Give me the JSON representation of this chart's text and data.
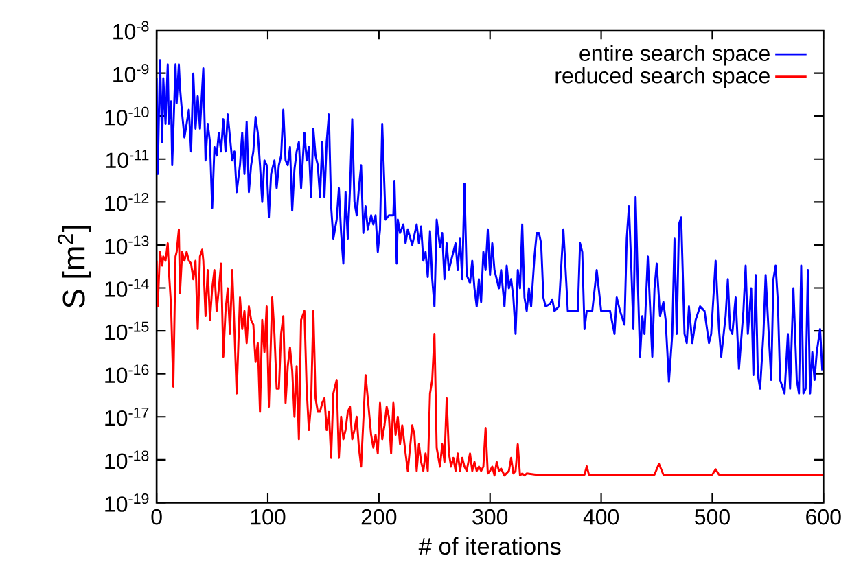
{
  "chart_data": {
    "type": "line",
    "xlabel": "# of iterations",
    "ylabel": "S [m$^{2}$]",
    "xlim": [
      0,
      600
    ],
    "ylim": [
      1e-19,
      1e-08
    ],
    "xticks": [
      0,
      100,
      200,
      300,
      400,
      500,
      600
    ],
    "yticks": [
      {
        "value": 1e-19,
        "label": "10$^{-19}$"
      },
      {
        "value": 1e-18,
        "label": "10$^{-18}$"
      },
      {
        "value": 1e-17,
        "label": "10$^{-17}$"
      },
      {
        "value": 1e-16,
        "label": "10$^{-16}$"
      },
      {
        "value": 1e-15,
        "label": "10$^{-15}$"
      },
      {
        "value": 1e-14,
        "label": "10$^{-14}$"
      },
      {
        "value": 1e-13,
        "label": "10$^{-13}$"
      },
      {
        "value": 1e-12,
        "label": "10$^{-12}$"
      },
      {
        "value": 1e-11,
        "label": "10$^{-11}$"
      },
      {
        "value": 1e-10,
        "label": "10$^{-10}$"
      },
      {
        "value": 1e-09,
        "label": "10$^{-9}$"
      },
      {
        "value": 1e-08,
        "label": "10$^{-8}$"
      }
    ],
    "log": "y",
    "legend": "top right",
    "grid": false,
    "series": [
      {
        "name": "entire search space",
        "color": "#0000ff",
        "x": [
          0,
          1,
          3,
          5,
          6,
          8,
          10,
          11,
          13,
          14,
          17,
          18,
          20,
          21,
          23,
          25,
          27,
          29,
          31,
          33,
          35,
          37,
          39,
          42,
          44,
          46,
          48,
          50,
          52,
          54,
          56,
          58,
          60,
          62,
          64,
          66,
          68,
          70,
          72,
          75,
          77,
          79,
          81,
          83,
          85,
          87,
          89,
          91,
          93,
          95,
          97,
          99,
          101,
          103,
          106,
          108,
          110,
          112,
          114,
          116,
          118,
          120,
          122,
          124,
          126,
          128,
          130,
          133,
          135,
          137,
          139,
          141,
          143,
          145,
          147,
          149,
          151,
          153,
          155,
          157,
          159,
          162,
          164,
          166,
          168,
          170,
          172,
          174,
          176,
          178,
          180,
          182,
          184,
          186,
          188,
          190,
          193,
          195,
          197,
          199,
          201,
          203,
          206,
          209,
          213,
          214,
          216,
          217,
          219,
          222,
          224,
          226,
          230,
          234,
          236,
          238,
          240,
          242,
          244,
          246,
          248,
          250,
          252,
          255,
          257,
          259,
          261,
          263,
          265,
          267,
          269,
          271,
          273,
          275,
          277,
          279,
          282,
          284,
          286,
          288,
          290,
          292,
          294,
          296,
          298,
          300,
          302,
          304,
          306,
          308,
          310,
          313,
          315,
          317,
          319,
          321,
          323,
          325,
          327,
          329,
          331,
          333,
          335,
          337,
          340,
          342,
          344,
          346,
          348,
          350,
          354,
          356,
          358,
          362,
          366,
          368,
          370,
          375,
          379,
          381,
          383,
          385,
          387,
          392,
          396,
          400,
          408,
          412,
          414,
          417,
          421,
          423,
          425,
          427,
          429,
          431,
          433,
          435,
          437,
          439,
          442,
          446,
          448,
          450,
          453,
          456,
          458,
          461,
          464,
          466,
          468,
          470,
          472,
          475,
          477,
          479,
          482,
          485,
          489,
          493,
          497,
          499,
          503,
          506,
          508,
          512,
          514,
          516,
          518,
          521,
          524,
          528,
          530,
          532,
          535,
          537,
          539,
          541,
          543,
          546,
          548,
          551,
          553,
          555,
          557,
          559,
          561,
          565,
          568,
          570,
          573,
          576,
          578,
          580,
          582,
          584,
          586,
          588,
          590,
          592,
          594,
          597,
          599
        ],
        "values": [
          7.6e-10,
          4.5e-12,
          2e-09,
          2.5e-11,
          7.6e-10,
          6.6e-11,
          1.6e-09,
          6.6e-11,
          2.2e-10,
          7.2e-12,
          1.6e-09,
          2e-10,
          1.6e-09,
          4.7e-10,
          1.1e-10,
          3.2e-11,
          6.6e-11,
          1.4e-10,
          1.5e-11,
          9.8e-10,
          5.1e-11,
          2.9e-10,
          5.1e-11,
          1.3e-09,
          9.3e-12,
          6.6e-11,
          2.5e-11,
          7.1e-13,
          1.9e-11,
          1.2e-11,
          4.1e-11,
          1.5e-11,
          8.5e-11,
          1.5e-11,
          1.1e-10,
          3.2e-11,
          9.3e-12,
          1.5e-11,
          1.7e-12,
          7.2e-12,
          4.1e-11,
          4.5e-12,
          7.4e-11,
          1.7e-12,
          7.2e-12,
          1.5e-11,
          9.5e-11,
          4.1e-11,
          7.2e-12,
          1e-12,
          9.3e-12,
          7.2e-12,
          4.4e-13,
          4.5e-12,
          9.3e-12,
          2.1e-12,
          7.2e-12,
          1.2e-11,
          1.4e-10,
          9.3e-12,
          7.2e-12,
          1.9e-11,
          6.3e-13,
          5.7e-12,
          1.5e-11,
          2.5e-11,
          2.1e-12,
          4.1e-11,
          9.3e-12,
          1.9e-11,
          1.3e-12,
          5.1e-11,
          1.2e-11,
          7.2e-12,
          1.3e-12,
          2.5e-11,
          1.3e-12,
          2.5e-11,
          1.1e-10,
          8e-13,
          1.4e-13,
          3.9e-13,
          2.1e-12,
          1.9e-13,
          3.7e-14,
          1.7e-12,
          1.4e-13,
          2.1e-12,
          8.5e-11,
          1e-12,
          4.9e-13,
          2.1e-12,
          7.2e-12,
          1.9e-13,
          8e-13,
          2.3e-13,
          4.9e-13,
          3e-13,
          4.9e-13,
          6.9e-14,
          2.3e-13,
          6.6e-11,
          3.9e-13,
          4.9e-13,
          4.9e-13,
          3.1e-12,
          3.7e-14,
          3.9e-13,
          1.9e-13,
          3e-13,
          1.1e-13,
          2.3e-13,
          1e-13,
          3e-13,
          1.1e-13,
          2.7e-13,
          4.3e-14,
          6.9e-14,
          1.8e-14,
          2.1e-13,
          1.6e-14,
          3.7e-15,
          3.9e-13,
          8.9e-14,
          1.9e-13,
          1.6e-14,
          1.1e-13,
          2.6e-14,
          4.3e-14,
          6.9e-14,
          1.1e-13,
          2.6e-14,
          1.4e-13,
          1.6e-14,
          2.7e-12,
          2e-14,
          1.3e-14,
          4.3e-14,
          9.8e-15,
          3.7e-15,
          1.6e-14,
          4.7e-15,
          6.9e-14,
          2.6e-14,
          2.3e-13,
          2e-14,
          1.1e-13,
          2.6e-14,
          1.6e-14,
          9.8e-15,
          2.6e-14,
          3.7e-15,
          3.3e-14,
          9.8e-15,
          1.6e-14,
          6e-15,
          8.5e-16,
          2.6e-14,
          9.8e-15,
          3e-13,
          6e-15,
          2.9e-15,
          9.8e-15,
          3.7e-15,
          5.4e-14,
          1.9e-13,
          1.9e-13,
          1.1e-13,
          6e-15,
          3.7e-15,
          4.2e-15,
          5.4e-15,
          2.9e-15,
          3.7e-15,
          2.3e-13,
          2.6e-14,
          2.9e-15,
          2.9e-15,
          2.9e-15,
          1.1e-13,
          6.9e-14,
          1.1e-15,
          2.9e-15,
          2.9e-15,
          2.6e-14,
          2.9e-15,
          2.9e-15,
          8.5e-16,
          6e-15,
          2.9e-15,
          1.4e-15,
          1.4e-13,
          8e-13,
          3.7e-14,
          1.1e-15,
          1.3e-12,
          1.3e-14,
          2.5e-16,
          2.2e-15,
          8.5e-16,
          5.4e-14,
          2.5e-16,
          9.8e-15,
          3.7e-14,
          2.2e-15,
          4.7e-15,
          1.8e-15,
          6.5e-17,
          8.5e-16,
          1.4e-13,
          8.5e-16,
          3e-13,
          4.4e-13,
          8.5e-16,
          5.2e-16,
          3.7e-15,
          5.2e-16,
          1.8e-15,
          3.7e-15,
          2.9e-15,
          5.2e-16,
          8.5e-16,
          4.3e-14,
          1.1e-15,
          2.5e-16,
          2.2e-15,
          1.6e-14,
          1.1e-15,
          8.5e-16,
          6e-15,
          1.3e-16,
          2.9e-15,
          3.3e-14,
          8.5e-16,
          9.8e-15,
          9.3e-17,
          2e-14,
          9.3e-17,
          4.5e-17,
          8.5e-16,
          2e-14,
          6.6e-16,
          7.2e-17,
          1.6e-14,
          3.3e-14,
          4.7e-15,
          7.2e-17,
          3.5e-17,
          8.5e-16,
          4.5e-17,
          9.8e-15,
          7.2e-17,
          3.5e-17,
          3.3e-14,
          3.5e-17,
          4.5e-17,
          2.6e-14,
          3.5e-17,
          3.2e-16,
          7.2e-17,
          3.2e-16,
          1.1e-15,
          1.2e-16
        ]
      },
      {
        "name": "reduced search space",
        "color": "#ff0000",
        "x": [
          0,
          1,
          3,
          5,
          6,
          8,
          10,
          11,
          13,
          15,
          17,
          18,
          20,
          21,
          23,
          25,
          27,
          29,
          31,
          33,
          35,
          37,
          39,
          41,
          42,
          44,
          46,
          48,
          50,
          52,
          54,
          56,
          58,
          60,
          62,
          64,
          66,
          68,
          70,
          72,
          75,
          77,
          79,
          81,
          83,
          85,
          87,
          89,
          91,
          93,
          95,
          97,
          99,
          101,
          104,
          106,
          108,
          110,
          112,
          114,
          116,
          118,
          120,
          122,
          124,
          126,
          128,
          130,
          133,
          135,
          137,
          139,
          141,
          143,
          145,
          147,
          149,
          151,
          153,
          155,
          157,
          159,
          162,
          164,
          166,
          168,
          170,
          172,
          174,
          176,
          178,
          180,
          182,
          184,
          186,
          188,
          190,
          193,
          195,
          197,
          199,
          201,
          203,
          205,
          207,
          209,
          211,
          213,
          215,
          217,
          219,
          221,
          224,
          226,
          228,
          230,
          232,
          234,
          236,
          238,
          240,
          242,
          244,
          246,
          248,
          250,
          252,
          255,
          257,
          259,
          261,
          263,
          265,
          267,
          269,
          271,
          273,
          275,
          277,
          279,
          282,
          284,
          286,
          288,
          290,
          292,
          294,
          296,
          298,
          300,
          302,
          304,
          306,
          308,
          310,
          313,
          317,
          319,
          321,
          323,
          325,
          327,
          329,
          331,
          333,
          341,
          358,
          379,
          385,
          387,
          389,
          400,
          448,
          452,
          456,
          500,
          503,
          506,
          600
        ],
        "values": [
          4.3e-14,
          3.7e-15,
          6.9e-14,
          3.3e-14,
          5.4e-14,
          4.3e-14,
          1.1e-13,
          2.6e-14,
          3.7e-15,
          5e-17,
          5.4e-14,
          6.9e-14,
          2.3e-13,
          7.6e-15,
          6.9e-14,
          4.3e-14,
          6.9e-14,
          4.3e-14,
          3.7e-14,
          1.6e-14,
          4.3e-14,
          1.1e-15,
          5.4e-14,
          7.8e-14,
          4.3e-14,
          2.2e-15,
          2.6e-14,
          1.8e-15,
          9.8e-15,
          2.6e-14,
          2.9e-15,
          9.8e-15,
          3.7e-14,
          2.5e-16,
          2.9e-15,
          9.8e-15,
          8.5e-16,
          2.6e-14,
          1.1e-15,
          3.5e-17,
          6e-15,
          1.1e-15,
          2.9e-15,
          5.2e-16,
          3.7e-15,
          1.8e-15,
          1.4e-15,
          1.9e-16,
          5.2e-16,
          1.3e-17,
          1.8e-15,
          3.2e-16,
          3.7e-15,
          1.7e-17,
          6e-15,
          8.5e-16,
          4.5e-17,
          4.5e-17,
          8.5e-16,
          2.2e-15,
          2.1e-17,
          1.5e-16,
          4.1e-16,
          1.2e-16,
          1e-17,
          1.5e-16,
          3e-18,
          1.8e-15,
          2.9e-15,
          4.5e-17,
          4.9e-18,
          2.1e-17,
          2.9e-15,
          2.7e-17,
          1.3e-17,
          1.3e-17,
          2.1e-17,
          2.7e-17,
          4.9e-18,
          1.3e-17,
          1.1e-18,
          3.5e-17,
          7.2e-17,
          1.1e-18,
          1e-17,
          3e-18,
          4.9e-18,
          1.3e-17,
          1.7e-17,
          3e-18,
          4.9e-18,
          1e-17,
          1.9e-18,
          6.9e-19,
          8e-18,
          9.3e-17,
          2.7e-17,
          3.8e-18,
          1.9e-18,
          3.8e-18,
          1.4e-18,
          2.1e-17,
          3e-18,
          6.3e-18,
          1.7e-17,
          1e-17,
          1.4e-18,
          2.1e-17,
          3.8e-18,
          1e-17,
          2.3e-18,
          6.3e-18,
          1.4e-18,
          5.5e-19,
          1.9e-18,
          6.3e-18,
          3.8e-18,
          5.5e-19,
          2.3e-18,
          8.9e-19,
          5.5e-19,
          1.4e-18,
          5.5e-19,
          3.5e-17,
          7.2e-17,
          8.5e-16,
          1.9e-18,
          6.9e-19,
          2.3e-18,
          8.9e-19,
          2.7e-17,
          1.4e-18,
          6.9e-19,
          1.1e-18,
          5.5e-19,
          1.4e-18,
          5.5e-19,
          1.1e-18,
          6.9e-19,
          5.5e-19,
          1.4e-18,
          5.5e-19,
          8.9e-19,
          5.5e-19,
          6.9e-19,
          5.5e-19,
          6.9e-19,
          5.5e-18,
          4.8e-19,
          5.5e-19,
          6.9e-19,
          4.3e-19,
          8.9e-19,
          5.5e-19,
          6.2e-19,
          4.3e-19,
          5.5e-19,
          1.1e-18,
          4.8e-19,
          5.5e-19,
          2.3e-18,
          4.3e-19,
          4.8e-19,
          4.3e-19,
          4.8e-19,
          4.5e-19,
          4.5e-19,
          4.5e-19,
          4.5e-19,
          7e-19,
          4.5e-19,
          4.5e-19,
          4.5e-19,
          8e-19,
          4.5e-19,
          4.5e-19,
          6e-19,
          4.5e-19,
          4.5e-19
        ]
      }
    ]
  }
}
